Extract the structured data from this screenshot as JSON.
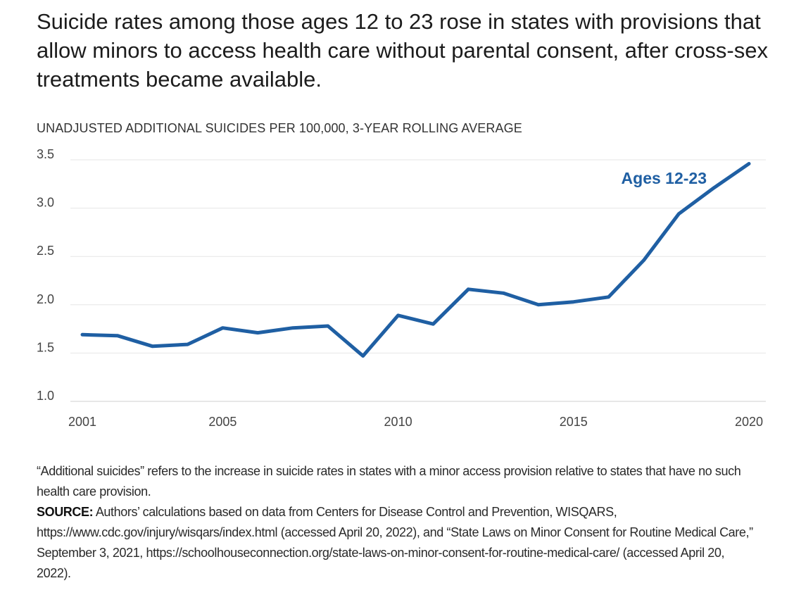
{
  "title": "Suicide rates among those ages 12 to 23 rose in states with provisions that allow minors to access health care without parental consent, after cross-sex treatments became available.",
  "chart_data": {
    "type": "line",
    "subtitle": "UNADJUSTED ADDITIONAL SUICIDES PER 100,000, 3-YEAR ROLLING AVERAGE",
    "xlabel": "",
    "ylabel": "",
    "x": [
      2001,
      2002,
      2003,
      2004,
      2005,
      2006,
      2007,
      2008,
      2009,
      2010,
      2011,
      2012,
      2013,
      2014,
      2015,
      2016,
      2017,
      2018,
      2019,
      2020
    ],
    "series": [
      {
        "name": "Ages 12-23",
        "values": [
          1.69,
          1.68,
          1.57,
          1.59,
          1.76,
          1.71,
          1.76,
          1.78,
          1.47,
          1.89,
          1.8,
          2.16,
          2.12,
          2.0,
          2.03,
          2.08,
          2.46,
          2.94,
          3.21,
          3.46
        ],
        "color": "#1f5fa3"
      }
    ],
    "xlim": [
      2001,
      2020
    ],
    "ylim": [
      1.0,
      3.5
    ],
    "x_ticks": [
      "2001",
      "2005",
      "2010",
      "2015",
      "2020"
    ],
    "y_ticks": [
      "1.0",
      "1.5",
      "2.0",
      "2.5",
      "3.0",
      "3.5"
    ],
    "grid": true,
    "legend": "direct label near top-right of line"
  },
  "notes": {
    "definition": "“Additional suicides” refers to the increase in suicide rates in states with a minor access provision relative to states that have no such health care provision.",
    "source_label": "SOURCE:",
    "source_text": " Authors’ calculations based on data from Centers for Disease Control and Prevention, WISQARS, https://www.cdc.gov/injury/wisqars/index.html (accessed April 20, 2022), and “State Laws on Minor Consent for Routine Medical Care,” September 3, 2021, https://schoolhouseconnection.org/state-laws-on-minor-consent-for-routine-medical-care/ (accessed April 20, 2022)."
  }
}
